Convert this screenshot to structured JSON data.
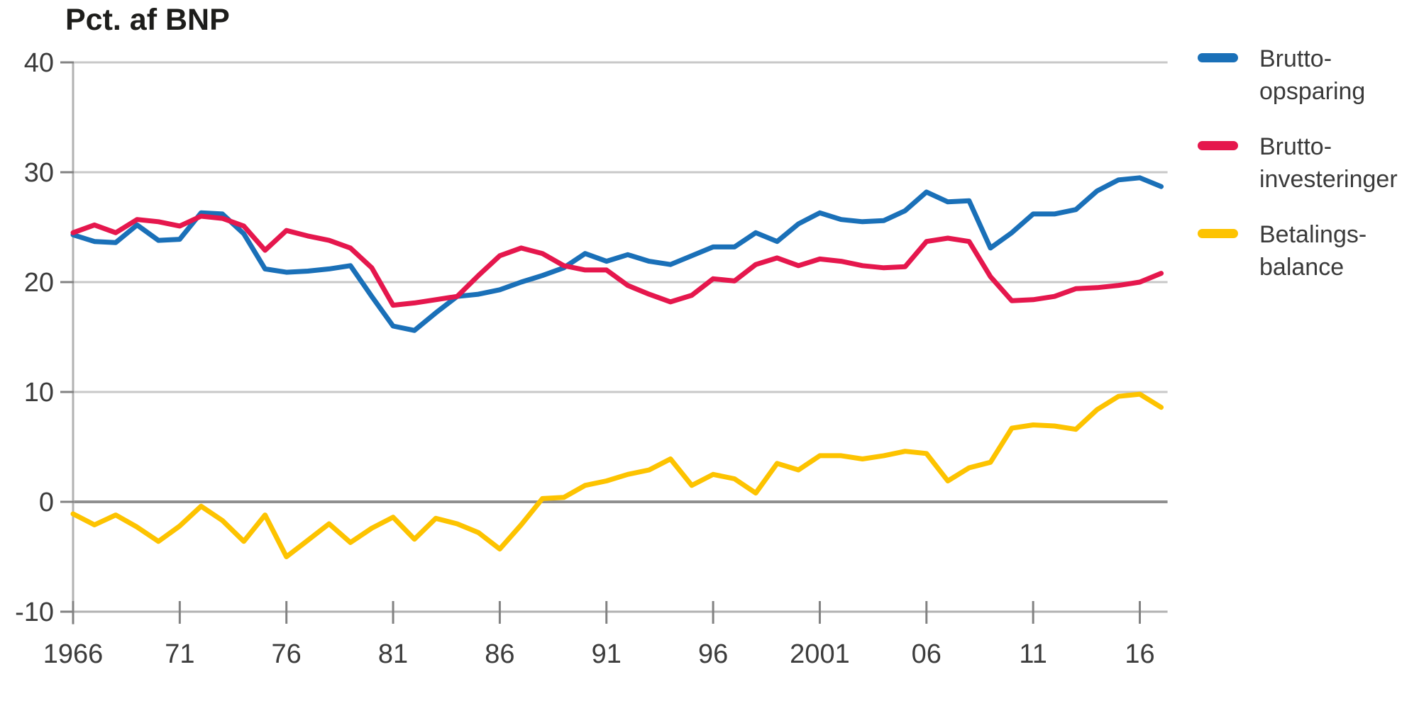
{
  "title": "Pct. af BNP",
  "colors": {
    "opsparing": "#1a70b8",
    "investeringer": "#e5174d",
    "betalingsbalance": "#fdc300",
    "gridline": "#c8c8c8",
    "zero_line": "#8f8f8f",
    "axis_line": "#b2b2b2",
    "tick_mark": "#828282",
    "text": "#3c3c3c"
  },
  "chart_data": {
    "type": "line",
    "title": "Pct. af BNP",
    "xlabel": "",
    "ylabel": "Pct. af BNP",
    "ylim": [
      -10,
      40
    ],
    "xlim": [
      1966,
      2017.3
    ],
    "grid": true,
    "legend_position": "right",
    "x": [
      1966,
      1967,
      1968,
      1969,
      1970,
      1971,
      1972,
      1973,
      1974,
      1975,
      1976,
      1977,
      1978,
      1979,
      1980,
      1981,
      1982,
      1983,
      1984,
      1985,
      1986,
      1987,
      1988,
      1989,
      1990,
      1991,
      1992,
      1993,
      1994,
      1995,
      1996,
      1997,
      1998,
      1999,
      2000,
      2001,
      2002,
      2003,
      2004,
      2005,
      2006,
      2007,
      2008,
      2009,
      2010,
      2011,
      2012,
      2013,
      2014,
      2015,
      2016,
      2017
    ],
    "xticks": {
      "values": [
        1966,
        1971,
        1976,
        1981,
        1986,
        1991,
        1996,
        2001,
        2006,
        2011,
        2016
      ],
      "labels": [
        "1966",
        "71",
        "76",
        "81",
        "86",
        "91",
        "96",
        "2001",
        "06",
        "11",
        "16"
      ]
    },
    "yticks": [
      40,
      30,
      20,
      10,
      0,
      -10
    ],
    "series": [
      {
        "name": "Bruttoopsparing",
        "label_lines": [
          "Brutto-",
          "opsparing"
        ],
        "color": "#1a70b8",
        "values": [
          24.3,
          23.7,
          23.6,
          25.2,
          23.8,
          23.9,
          26.3,
          26.2,
          24.4,
          21.2,
          20.9,
          21.0,
          21.2,
          21.5,
          18.7,
          16.0,
          15.6,
          17.2,
          18.7,
          18.9,
          19.3,
          20.0,
          20.6,
          21.3,
          22.6,
          21.9,
          22.5,
          21.9,
          21.6,
          22.4,
          23.2,
          23.2,
          24.5,
          23.7,
          25.3,
          26.3,
          25.7,
          25.5,
          25.6,
          26.5,
          28.2,
          27.3,
          27.4,
          23.1,
          24.5,
          26.2,
          26.2,
          26.6,
          28.3,
          29.3,
          29.5,
          28.7
        ]
      },
      {
        "name": "Bruttoinvesteringer",
        "label_lines": [
          "Brutto-",
          "investeringer"
        ],
        "color": "#e5174d",
        "values": [
          24.5,
          25.2,
          24.5,
          25.7,
          25.5,
          25.1,
          26.0,
          25.8,
          25.1,
          22.9,
          24.7,
          24.2,
          23.8,
          23.1,
          21.3,
          17.9,
          18.1,
          18.4,
          18.7,
          20.6,
          22.4,
          23.1,
          22.6,
          21.5,
          21.1,
          21.1,
          19.7,
          18.9,
          18.2,
          18.8,
          20.3,
          20.1,
          21.6,
          22.2,
          21.5,
          22.1,
          21.9,
          21.5,
          21.3,
          21.4,
          23.7,
          24.0,
          23.7,
          20.5,
          18.3,
          18.4,
          18.7,
          19.4,
          19.5,
          19.7,
          20.0,
          20.8
        ]
      },
      {
        "name": "Betalingsbalance",
        "label_lines": [
          "Betalings-",
          "balance"
        ],
        "color": "#fdc300",
        "values": [
          -1.1,
          -2.1,
          -1.2,
          -2.3,
          -3.6,
          -2.2,
          -0.4,
          -1.7,
          -3.6,
          -1.2,
          -5.0,
          -3.5,
          -2.0,
          -3.7,
          -2.4,
          -1.4,
          -3.4,
          -1.5,
          -2.0,
          -2.8,
          -4.3,
          -2.1,
          0.3,
          0.4,
          1.5,
          1.9,
          2.5,
          2.9,
          3.9,
          1.5,
          2.5,
          2.1,
          0.8,
          3.5,
          2.9,
          4.2,
          4.2,
          3.9,
          4.2,
          4.6,
          4.4,
          1.9,
          3.1,
          3.6,
          6.7,
          7.0,
          6.9,
          6.6,
          8.4,
          9.6,
          9.8,
          8.6
        ]
      }
    ]
  }
}
